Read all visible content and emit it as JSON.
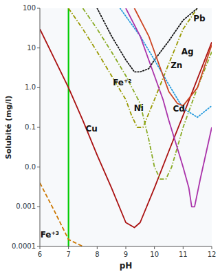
{
  "chart_data": {
    "type": "line",
    "log": "y",
    "grid": false,
    "xlabel": "pH",
    "ylabel": "Solubité (mg/l)",
    "xlim": [
      6,
      12
    ],
    "ylim": [
      0.0001,
      100
    ],
    "xticks": [
      6,
      7,
      8,
      9,
      10,
      11,
      12
    ],
    "yticks": [
      0.0001,
      0.001,
      {
        "value": 0.01,
        "label": "0.0"
      },
      0.1,
      {
        "value": 1.0,
        "label": "1.0"
      },
      10,
      100
    ],
    "vline": {
      "x": 7.0,
      "color": "#00cc00"
    },
    "series": [
      {
        "name": "Fe⁺³",
        "color": "#cc7700",
        "line_style": "dashed",
        "x": [
          6.0,
          6.5,
          7.0,
          7.5
        ],
        "values": [
          0.004,
          0.0008,
          0.00015,
          0.0001
        ]
      },
      {
        "name": "Cu",
        "color": "#aa1111",
        "line_style": "solid",
        "x": [
          6.0,
          7.0,
          7.5,
          8.0,
          8.5,
          9.0,
          9.3,
          9.5,
          10.0,
          10.5,
          11.0,
          12.0
        ],
        "values": [
          30,
          1.0,
          0.15,
          0.02,
          0.003,
          0.0004,
          0.0003,
          0.0004,
          0.003,
          0.025,
          0.2,
          14
        ]
      },
      {
        "name": "Fe⁺²",
        "color": "#999900",
        "line_style": "dashdot",
        "x": [
          7.0,
          7.5,
          8.0,
          8.5,
          9.0,
          9.2,
          9.4,
          9.6,
          10.0,
          10.5,
          11.0,
          11.5
        ],
        "values": [
          100,
          30,
          8.0,
          2.0,
          0.5,
          0.2,
          0.1,
          0.1,
          0.5,
          4.0,
          30,
          100
        ]
      },
      {
        "name": "Ni",
        "color": "#88aa22",
        "line_style": "dashdot",
        "x": [
          7.5,
          8.0,
          8.5,
          9.0,
          9.5,
          9.8,
          10.0,
          10.2,
          10.4,
          10.6,
          11.0,
          11.5,
          12.0
        ],
        "values": [
          100,
          30,
          8.0,
          2.0,
          0.4,
          0.05,
          0.01,
          0.005,
          0.005,
          0.01,
          0.1,
          1.0,
          8.0
        ]
      },
      {
        "name": "Pb",
        "color": "#111111",
        "line_style": "dotted",
        "x": [
          8.0,
          8.5,
          9.0,
          9.3,
          9.5,
          9.8,
          10.0,
          10.5,
          11.0,
          11.5
        ],
        "values": [
          100,
          20,
          5.0,
          2.5,
          2.5,
          3.0,
          5.0,
          15,
          50,
          100
        ]
      },
      {
        "name": "Ag",
        "color": "#2299dd",
        "line_style": "dotted",
        "x": [
          8.8,
          9.5,
          10.0,
          10.5,
          11.0,
          11.5,
          12.0
        ],
        "values": [
          100,
          20,
          5.0,
          1.2,
          0.3,
          0.18,
          0.35
        ]
      },
      {
        "name": "Zn",
        "color": "#cc4422",
        "line_style": "solid",
        "x": [
          9.3,
          9.8,
          10.0,
          10.3,
          10.5,
          10.8,
          11.0,
          11.5,
          12.0
        ],
        "values": [
          100,
          20,
          8.0,
          2.0,
          0.8,
          0.4,
          0.35,
          1.0,
          12
        ]
      },
      {
        "name": "Cd",
        "color": "#aa33aa",
        "line_style": "solid",
        "x": [
          9.0,
          9.5,
          9.8,
          10.0,
          10.3,
          10.5,
          10.8,
          11.0,
          11.2,
          11.3,
          11.4,
          11.6,
          12.0
        ],
        "values": [
          100,
          20,
          5.0,
          2.0,
          0.5,
          0.15,
          0.03,
          0.01,
          0.003,
          0.001,
          0.001,
          0.005,
          0.1
        ]
      }
    ]
  }
}
